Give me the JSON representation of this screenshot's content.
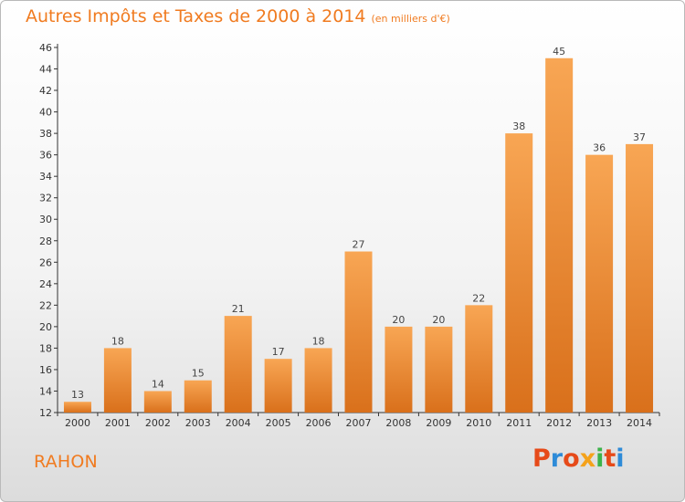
{
  "header": {
    "title": "Autres Impôts et Taxes de 2000 à 2014",
    "unit": "(en milliers d'€)"
  },
  "footer": {
    "commune": "RAHON",
    "logo_text": "Proxiti",
    "logo_colors": [
      "#e64a19",
      "#2e8bd8",
      "#f4a21b",
      "#3cb34a"
    ]
  },
  "chart_data": {
    "type": "bar",
    "title": "Autres Impôts et Taxes de 2000 à 2014",
    "subtitle": "(en milliers d'€)",
    "xlabel": "",
    "ylabel": "",
    "categories": [
      "2000",
      "2001",
      "2002",
      "2003",
      "2004",
      "2005",
      "2006",
      "2007",
      "2008",
      "2009",
      "2010",
      "2011",
      "2012",
      "2013",
      "2014"
    ],
    "values": [
      13,
      18,
      14,
      15,
      21,
      17,
      18,
      27,
      20,
      20,
      22,
      38,
      45,
      36,
      37
    ],
    "ylim": [
      12,
      46
    ],
    "yticks": [
      12,
      14,
      16,
      18,
      20,
      22,
      24,
      26,
      28,
      30,
      32,
      34,
      36,
      38,
      40,
      42,
      44,
      46
    ],
    "grid": false,
    "legend": "none",
    "bar_color": "#f39a45",
    "axis_color": "#333333"
  }
}
